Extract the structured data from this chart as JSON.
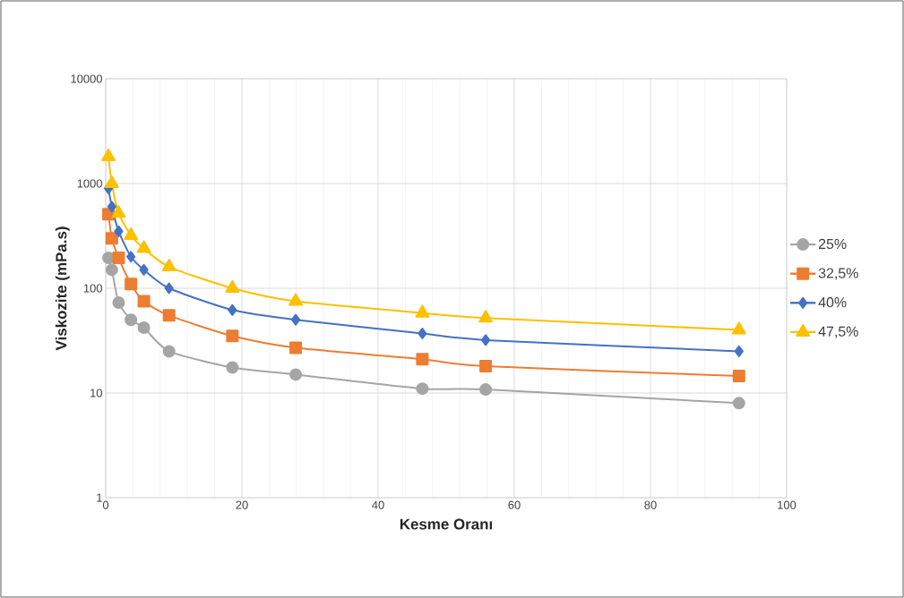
{
  "chart_data": {
    "type": "line",
    "xlabel": "Kesme Oranı",
    "ylabel": "Viskozite (mPa.s)",
    "x": [
      0.4,
      0.9,
      1.9,
      3.7,
      5.6,
      9.3,
      18.6,
      27.9,
      46.5,
      55.8,
      93
    ],
    "xlim": [
      0,
      100
    ],
    "xticks": [
      0,
      20,
      40,
      60,
      80,
      100
    ],
    "ylim": [
      1,
      10000
    ],
    "yticks": [
      1,
      10,
      100,
      1000,
      10000
    ],
    "log": "y",
    "grid": true,
    "legend": "right",
    "series": [
      {
        "name": "25%",
        "color": "#a5a5a5",
        "marker": "circle",
        "values": [
          195,
          150,
          73,
          50,
          42,
          25,
          17.5,
          15,
          11,
          10.8,
          8
        ]
      },
      {
        "name": "32,5%",
        "color": "#ed7d31",
        "marker": "square",
        "values": [
          510,
          300,
          195,
          110,
          75,
          55,
          35,
          27,
          21,
          18,
          14.5
        ]
      },
      {
        "name": "40%",
        "color": "#4472c4",
        "marker": "diamond",
        "values": [
          900,
          600,
          350,
          200,
          150,
          100,
          62,
          50,
          37,
          32,
          25
        ]
      },
      {
        "name": "47,5%",
        "color": "#ffc000",
        "marker": "triangle",
        "values": [
          1800,
          1000,
          520,
          320,
          240,
          160,
          100,
          75,
          58,
          52,
          40
        ]
      }
    ]
  }
}
